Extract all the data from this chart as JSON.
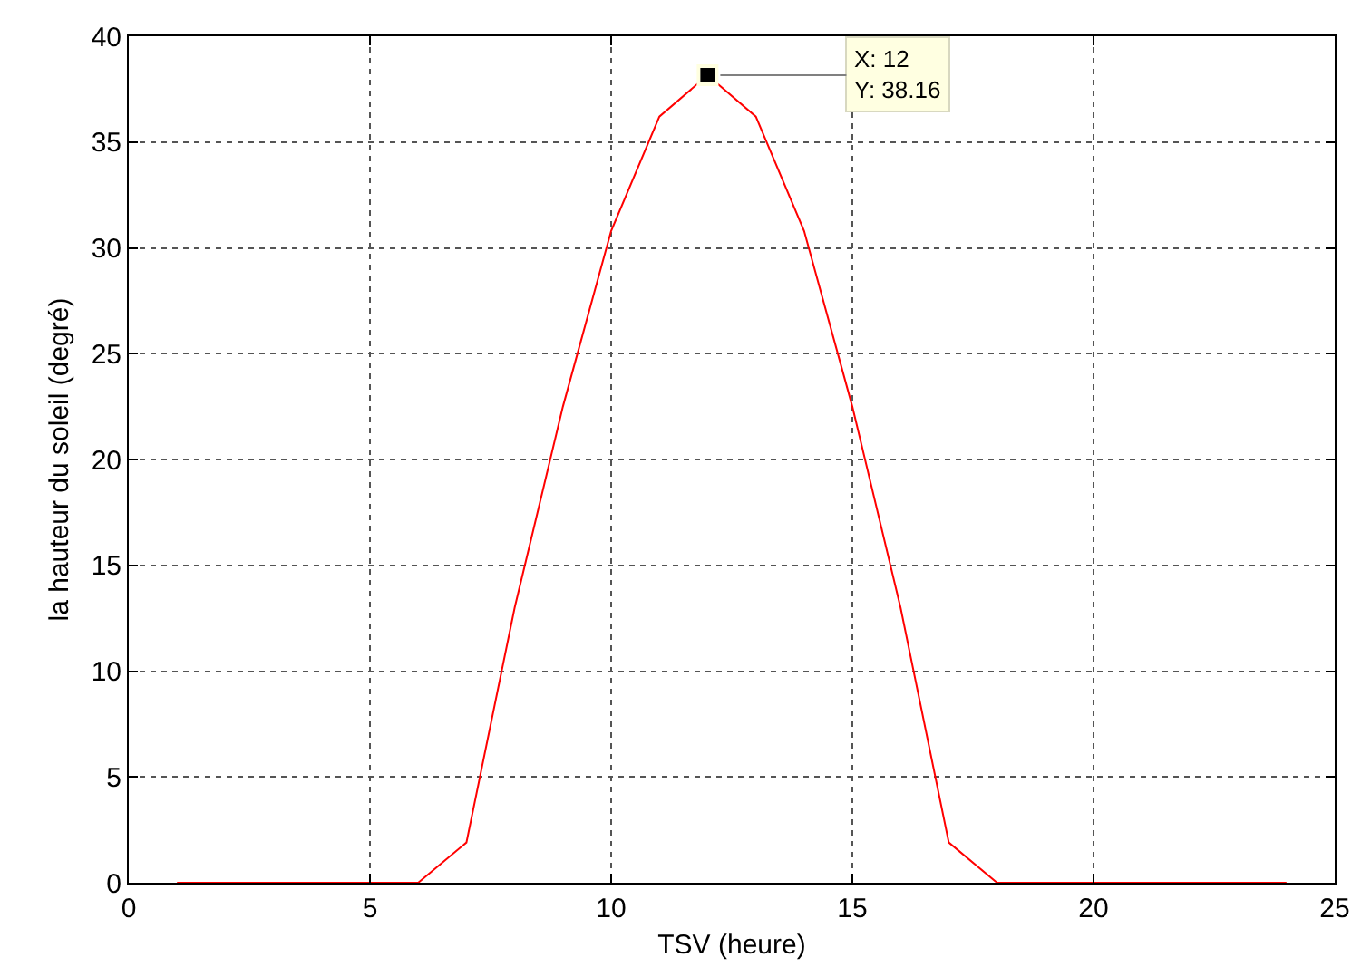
{
  "chart_data": {
    "type": "line",
    "xlabel": "TSV (heure)",
    "ylabel": "la hauteur du soleil (degré)",
    "x": [
      1,
      2,
      3,
      4,
      5,
      6,
      7,
      8,
      9,
      10,
      11,
      12,
      13,
      14,
      15,
      16,
      17,
      18,
      19,
      20,
      21,
      22,
      23,
      24
    ],
    "series": [
      {
        "color": "#ff0000",
        "values": [
          0,
          0,
          0,
          0,
          0,
          0,
          1.9,
          13.0,
          22.5,
          30.8,
          36.2,
          38.16,
          36.2,
          30.8,
          22.5,
          13.0,
          1.9,
          0,
          0,
          0,
          0,
          0,
          0,
          0
        ]
      }
    ],
    "xlim": [
      0,
      25
    ],
    "xticks": [
      0,
      5,
      10,
      15,
      20,
      25
    ],
    "ylim": [
      0,
      40
    ],
    "yticks": [
      0,
      5,
      10,
      15,
      20,
      25,
      30,
      35,
      40
    ],
    "grid": true,
    "marker": "none",
    "line_style": "solid",
    "annotations": [
      {
        "text": "X: 12\nY: 38.16",
        "x": 12,
        "y": 38.16
      }
    ]
  }
}
